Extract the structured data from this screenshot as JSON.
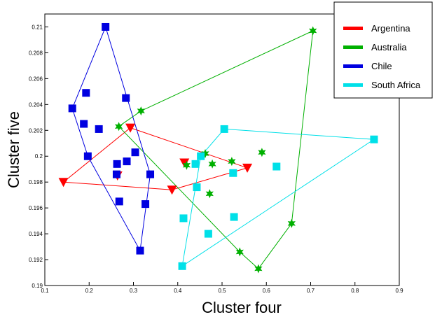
{
  "chart_data": {
    "type": "scatter",
    "title": "",
    "xlabel": "Cluster four",
    "ylabel": "Cluster five",
    "xlim": [
      0.1,
      0.9
    ],
    "ylim": [
      0.19,
      0.211
    ],
    "xticks": [
      "0.1",
      "0.2",
      "0.3",
      "0.4",
      "0.5",
      "0.6",
      "0.7",
      "0.8",
      "0.9"
    ],
    "yticks": [
      "0.19",
      "0.192",
      "0.194",
      "0.196",
      "0.198",
      "0.2",
      "0.202",
      "0.204",
      "0.206",
      "0.208",
      "0.21"
    ],
    "grid": false,
    "legend_position": "top-right",
    "series": [
      {
        "name": "Argentina",
        "color": "#ff0000",
        "marker": "triangle-down",
        "points": [
          [
            0.142,
            0.198
          ],
          [
            0.293,
            0.2022
          ],
          [
            0.387,
            0.1974
          ],
          [
            0.415,
            0.1995
          ],
          [
            0.557,
            0.1991
          ],
          [
            0.264,
            0.1985
          ]
        ],
        "hull": [
          [
            0.142,
            0.198
          ],
          [
            0.293,
            0.2022
          ],
          [
            0.557,
            0.1991
          ],
          [
            0.387,
            0.1974
          ]
        ]
      },
      {
        "name": "Australia",
        "color": "#00b000",
        "marker": "star",
        "points": [
          [
            0.267,
            0.2023
          ],
          [
            0.317,
            0.2035
          ],
          [
            0.705,
            0.2097
          ],
          [
            0.657,
            0.1948
          ],
          [
            0.582,
            0.1913
          ],
          [
            0.54,
            0.1926
          ],
          [
            0.42,
            0.1993
          ],
          [
            0.462,
            0.2002
          ],
          [
            0.478,
            0.1994
          ],
          [
            0.522,
            0.1996
          ],
          [
            0.59,
            0.2003
          ],
          [
            0.472,
            0.1971
          ]
        ],
        "hull": [
          [
            0.267,
            0.2023
          ],
          [
            0.317,
            0.2035
          ],
          [
            0.705,
            0.2097
          ],
          [
            0.657,
            0.1948
          ],
          [
            0.582,
            0.1913
          ],
          [
            0.54,
            0.1926
          ]
        ]
      },
      {
        "name": "Chile",
        "color": "#0000e0",
        "marker": "square",
        "points": [
          [
            0.237,
            0.21
          ],
          [
            0.162,
            0.2037
          ],
          [
            0.197,
            0.2
          ],
          [
            0.315,
            0.1927
          ],
          [
            0.338,
            0.1986
          ],
          [
            0.193,
            0.2049
          ],
          [
            0.283,
            0.2045
          ],
          [
            0.188,
            0.2025
          ],
          [
            0.222,
            0.2021
          ],
          [
            0.304,
            0.2003
          ],
          [
            0.285,
            0.1996
          ],
          [
            0.263,
            0.1994
          ],
          [
            0.262,
            0.1986
          ],
          [
            0.268,
            0.1965
          ],
          [
            0.327,
            0.1963
          ]
        ],
        "hull": [
          [
            0.237,
            0.21
          ],
          [
            0.338,
            0.1986
          ],
          [
            0.315,
            0.1927
          ],
          [
            0.197,
            0.2
          ],
          [
            0.162,
            0.2037
          ]
        ]
      },
      {
        "name": "South Africa",
        "color": "#00e0e8",
        "marker": "square",
        "points": [
          [
            0.505,
            0.2021
          ],
          [
            0.843,
            0.2013
          ],
          [
            0.41,
            0.1915
          ],
          [
            0.452,
            0.2
          ],
          [
            0.44,
            0.1994
          ],
          [
            0.443,
            0.1976
          ],
          [
            0.525,
            0.1987
          ],
          [
            0.623,
            0.1992
          ],
          [
            0.413,
            0.1952
          ],
          [
            0.527,
            0.1953
          ],
          [
            0.469,
            0.194
          ]
        ],
        "hull": [
          [
            0.505,
            0.2021
          ],
          [
            0.843,
            0.2013
          ],
          [
            0.41,
            0.1915
          ],
          [
            0.452,
            0.2
          ]
        ]
      }
    ]
  }
}
